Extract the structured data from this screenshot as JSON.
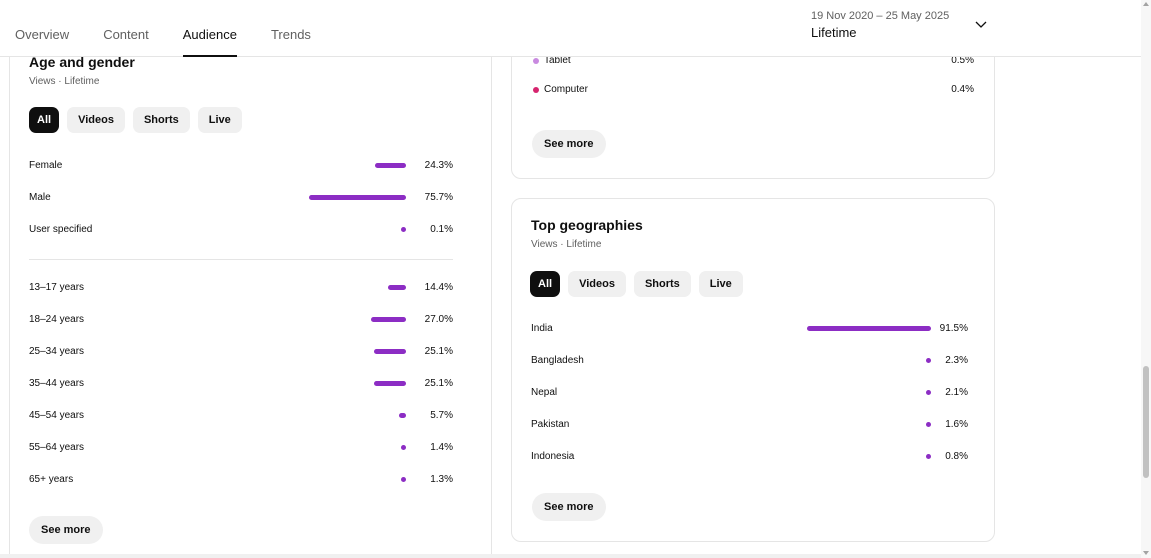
{
  "header": {
    "tabs": [
      {
        "label": "Overview"
      },
      {
        "label": "Content"
      },
      {
        "label": "Audience"
      },
      {
        "label": "Trends"
      }
    ],
    "active_tab": "Audience",
    "date_range": "19 Nov 2020 – 25 May 2025",
    "date_label": "Lifetime"
  },
  "age_gender": {
    "title": "Age and gender",
    "subtitle": "Views · Lifetime",
    "filters": [
      "All",
      "Videos",
      "Shorts",
      "Live"
    ],
    "active_filter": "All",
    "gender": [
      {
        "label": "Female",
        "value": "24.3%",
        "pct": 24.3
      },
      {
        "label": "Male",
        "value": "75.7%",
        "pct": 75.7
      },
      {
        "label": "User specified",
        "value": "0.1%",
        "pct": 0.1
      }
    ],
    "ages": [
      {
        "label": "13–17 years",
        "value": "14.4%",
        "pct": 14.4
      },
      {
        "label": "18–24 years",
        "value": "27.0%",
        "pct": 27.0
      },
      {
        "label": "25–34 years",
        "value": "25.1%",
        "pct": 25.1
      },
      {
        "label": "35–44 years",
        "value": "25.1%",
        "pct": 25.1
      },
      {
        "label": "45–54 years",
        "value": "5.7%",
        "pct": 5.7
      },
      {
        "label": "55–64 years",
        "value": "1.4%",
        "pct": 1.4
      },
      {
        "label": "65+ years",
        "value": "1.3%",
        "pct": 1.3
      }
    ],
    "see_more": "See more"
  },
  "devices": {
    "items": [
      {
        "label": "Tablet",
        "value": "0.5%",
        "color": "#c98ae0"
      },
      {
        "label": "Computer",
        "value": "0.4%",
        "color": "#d6246e"
      }
    ],
    "see_more": "See more"
  },
  "geographies": {
    "title": "Top geographies",
    "subtitle": "Views · Lifetime",
    "filters": [
      "All",
      "Videos",
      "Shorts",
      "Live"
    ],
    "active_filter": "All",
    "items": [
      {
        "label": "India",
        "value": "91.5%",
        "pct": 91.5
      },
      {
        "label": "Bangladesh",
        "value": "2.3%",
        "pct": 2.3
      },
      {
        "label": "Nepal",
        "value": "2.1%",
        "pct": 2.1
      },
      {
        "label": "Pakistan",
        "value": "1.6%",
        "pct": 1.6
      },
      {
        "label": "Indonesia",
        "value": "0.8%",
        "pct": 0.8
      }
    ],
    "see_more": "See more"
  },
  "colors": {
    "bar": "#8c2dc4",
    "accent_dark": "#0f0f0f"
  }
}
